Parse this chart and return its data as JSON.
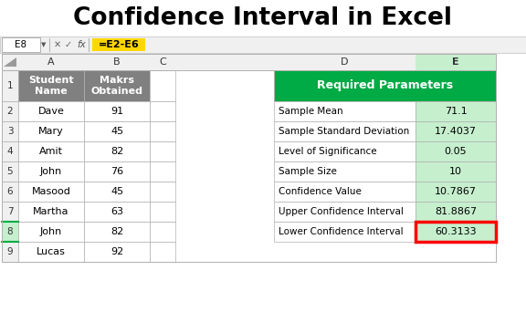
{
  "title": "Confidence Interval in Excel",
  "formula_bar_cell": "E8",
  "formula_bar_formula": "=E2-E6",
  "left_table": {
    "header_row": [
      "Student\nName",
      "Makrs\nObtained"
    ],
    "rows": [
      [
        "Dave",
        "91"
      ],
      [
        "Mary",
        "45"
      ],
      [
        "Amit",
        "82"
      ],
      [
        "John",
        "76"
      ],
      [
        "Masood",
        "45"
      ],
      [
        "Martha",
        "63"
      ],
      [
        "John",
        "82"
      ],
      [
        "Lucas",
        "92"
      ]
    ],
    "row_numbers": [
      "1",
      "2",
      "3",
      "4",
      "5",
      "6",
      "7",
      "8",
      "9"
    ]
  },
  "right_table": {
    "header": "Required Parameters",
    "rows": [
      [
        "Sample Mean",
        "71.1"
      ],
      [
        "Sample Standard Deviation",
        "17.4037"
      ],
      [
        "Level of Significance",
        "0.05"
      ],
      [
        "Sample Size",
        "10"
      ],
      [
        "Confidence Value",
        "10.7867"
      ],
      [
        "Upper Confidence Interval",
        "81.8867"
      ],
      [
        "Lower Confidence Interval",
        "60.3133"
      ]
    ]
  },
  "colors": {
    "title_bg": "#ffffff",
    "title_text": "#000000",
    "formula_highlight": "#FFD700",
    "left_header_bg": "#808080",
    "left_header_text": "#ffffff",
    "right_header_bg": "#00AA44",
    "right_header_text": "#ffffff",
    "right_e_col_bg": "#c6efce",
    "grid_line": "#b0b0b0",
    "selected_row_outline": "#00AA44",
    "selected_e8_outline": "#FF0000"
  }
}
